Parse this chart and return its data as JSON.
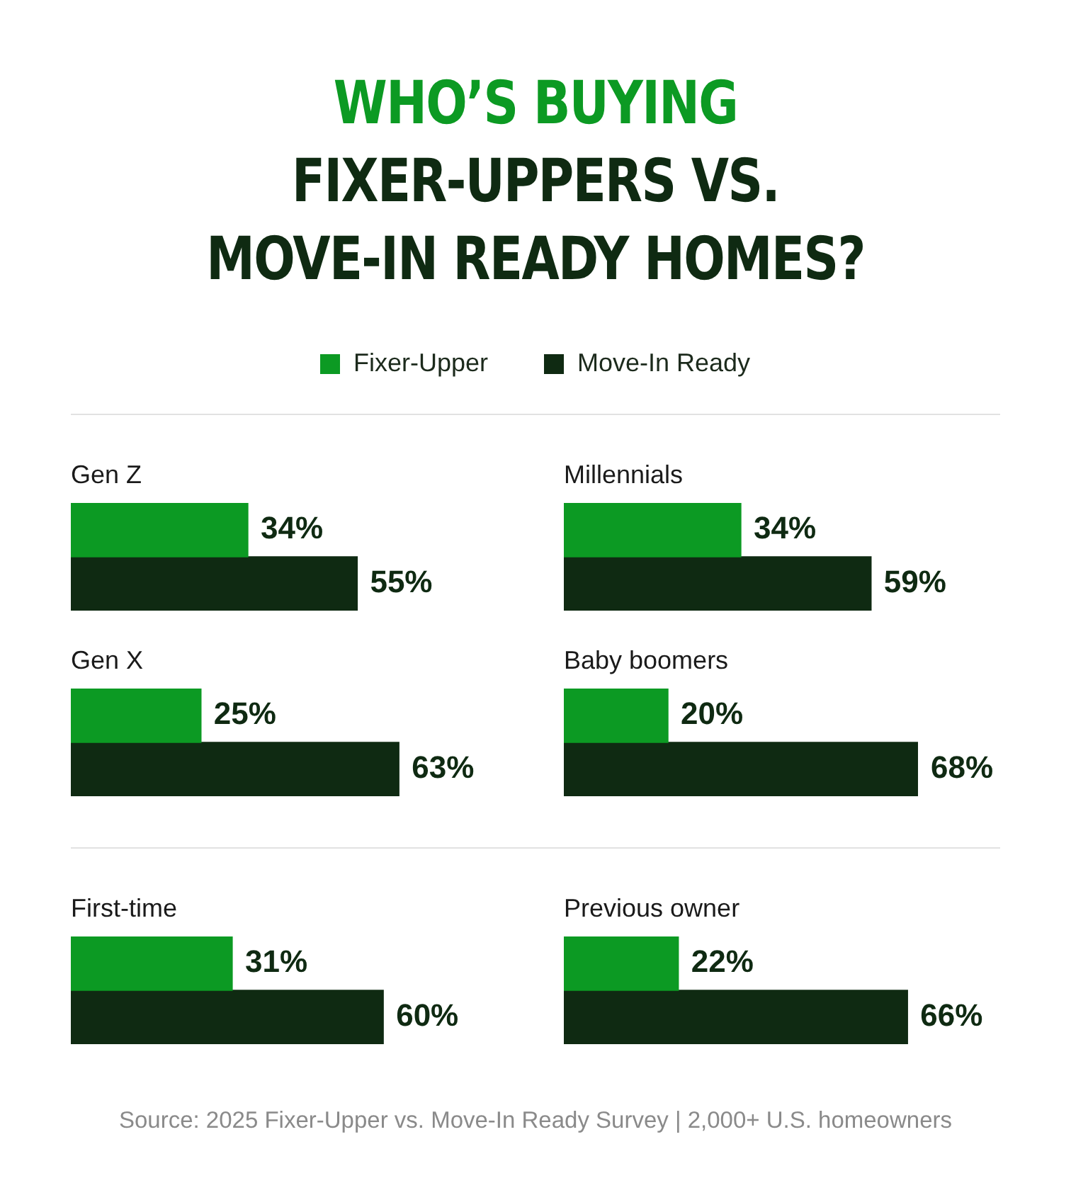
{
  "chart_data": [
    {
      "type": "other",
      "title": "WHO’S BUYING\nFIXER-UPPERS VS.\nMOVE-IN READY HOMES?",
      "annotations": [
        "Source: 2025 Fixer-Upper vs. Move-In Ready Survey | 2,000+ U.S. homeowners"
      ]
    },
    {
      "type": "bar",
      "title": "Gen Z",
      "orientation": "horizontal",
      "categories": [
        null
      ],
      "tick_labels": false,
      "legend": "top",
      "series": [
        {
          "name": "Fixer-Upper",
          "color": "#0c9a23",
          "values": [
            34
          ],
          "value_labels": [
            "34%"
          ]
        },
        {
          "name": "Move-In Ready",
          "color": "#0f2a12",
          "values": [
            55
          ],
          "value_labels": [
            "55%"
          ]
        }
      ]
    },
    {
      "type": "bar",
      "title": "Millennials",
      "orientation": "horizontal",
      "categories": [
        null
      ],
      "tick_labels": false,
      "series": [
        {
          "color": "#0c9a23",
          "values": [
            34
          ],
          "value_labels": [
            "34%"
          ]
        },
        {
          "color": "#0f2a12",
          "values": [
            59
          ],
          "value_labels": [
            "59%"
          ]
        }
      ]
    },
    {
      "type": "bar",
      "title": "Gen X",
      "orientation": "horizontal",
      "categories": [
        null
      ],
      "tick_labels": false,
      "series": [
        {
          "color": "#0c9a23",
          "values": [
            25
          ],
          "value_labels": [
            "25%"
          ]
        },
        {
          "color": "#0f2a12",
          "values": [
            63
          ],
          "value_labels": [
            "63%"
          ]
        }
      ]
    },
    {
      "type": "bar",
      "title": "Baby boomers",
      "orientation": "horizontal",
      "categories": [
        null
      ],
      "tick_labels": false,
      "series": [
        {
          "color": "#0c9a23",
          "values": [
            20
          ],
          "value_labels": [
            "20%"
          ]
        },
        {
          "color": "#0f2a12",
          "values": [
            68
          ],
          "value_labels": [
            "68%"
          ]
        }
      ]
    },
    {
      "type": "bar",
      "title": "First-time",
      "orientation": "horizontal",
      "categories": [
        null
      ],
      "tick_labels": false,
      "series": [
        {
          "color": "#0c9a23",
          "values": [
            31
          ],
          "value_labels": [
            "31%"
          ]
        },
        {
          "color": "#0f2a12",
          "values": [
            60
          ],
          "value_labels": [
            "60%"
          ]
        }
      ]
    },
    {
      "type": "bar",
      "title": "Previous owner",
      "orientation": "horizontal",
      "categories": [
        null
      ],
      "tick_labels": false,
      "series": [
        {
          "color": "#0c9a23",
          "values": [
            22
          ],
          "value_labels": [
            "22%"
          ]
        },
        {
          "color": "#0f2a12",
          "values": [
            66
          ],
          "value_labels": [
            "66%"
          ]
        }
      ]
    }
  ]
}
